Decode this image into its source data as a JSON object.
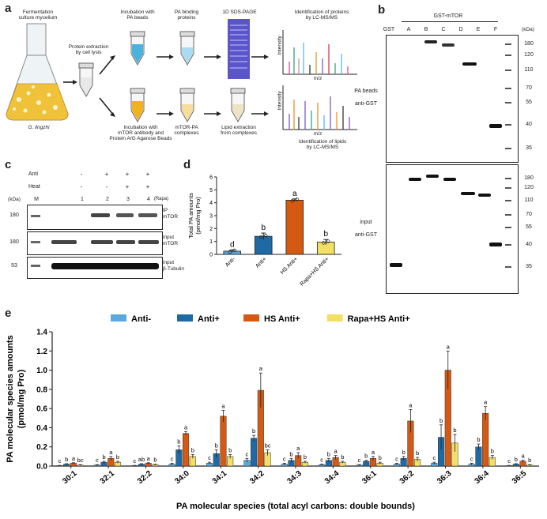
{
  "panel_labels": {
    "a": "a",
    "b": "b",
    "c": "c",
    "d": "d",
    "e": "e"
  },
  "panel_a": {
    "flask_top": "Fermentation\nculture mycelium",
    "flask_species": "G. lingzhi",
    "extraction": "Protein extraction\nby cell lysis",
    "incub_pa": "Incubation with\nPA beads",
    "pa_binding": "PA binding\nproteins",
    "sds_page": "1D SDS-PAGE",
    "ident_proteins": "Identification of proteins\nby LC-MS/MS",
    "incub_mtor": "Incubation with\nmTOR antibody and\nProtein A/G Agarose Beads",
    "mtor_pa": "mTOR-PA\ncomplexes",
    "lipid_extraction": "Lipid extraction\nfrom complexes",
    "ident_lipids": "Identification of lipids\nby LC-MS/MS",
    "intensity": "Intensity",
    "mz": "m/z"
  },
  "panel_b": {
    "header": "GST-mTOR",
    "lanes": [
      "GST",
      "A",
      "B",
      "C",
      "D",
      "E",
      "F"
    ],
    "kda": "(kDa)",
    "markers": [
      "180",
      "120",
      "110",
      "70",
      "55",
      "40",
      "35"
    ],
    "top_label1": "PA beads",
    "top_label2": "anti-GST",
    "bottom_label1": "input",
    "bottom_label2": "anti-GST"
  },
  "panel_c": {
    "row_anti": "Anti",
    "row_heat": "Heat",
    "anti_vals": [
      "-",
      "+",
      "+",
      "+"
    ],
    "heat_vals": [
      "-",
      "-",
      "+",
      "+"
    ],
    "kda": "(kDa)",
    "lanes": [
      "M",
      "1",
      "2",
      "3",
      "4"
    ],
    "rapa": "(Rapa)",
    "blot1_marker": "180",
    "blot1_label1": "IP",
    "blot1_label2": "mTOR",
    "blot2_marker": "180",
    "blot2_label1": "input",
    "blot2_label2": "mTOR",
    "blot3_marker": "53",
    "blot3_label1": "input",
    "blot3_label2": "β-Tubulin"
  },
  "chart_data": [
    {
      "type": "bar",
      "panel": "d",
      "ylabel": "Total PA amounts\n(pmol/mg Pro)",
      "categories": [
        "Anti-",
        "Anti+",
        "HS Anti+",
        "Rapa+HS Anti+"
      ],
      "values": [
        0.25,
        1.4,
        4.2,
        0.95
      ],
      "errors": [
        0.1,
        0.25,
        0.1,
        0.2
      ],
      "letters": [
        "d",
        "b",
        "a",
        "b"
      ],
      "colors": [
        "#5aa9dc",
        "#1f6aa5",
        "#d45a14",
        "#f1e065"
      ],
      "ylim": [
        0,
        6
      ],
      "yticks": [
        0,
        1,
        2,
        3,
        4,
        5,
        6
      ]
    },
    {
      "type": "bar",
      "panel": "e",
      "ylabel": "PA molecular species amounts\n(pmol/mg Pro)",
      "xlabel": "PA molecular species (total acyl carbons: double bounds)",
      "legend": [
        "Anti-",
        "Anti+",
        "HS Anti+",
        "Rapa+HS Anti+"
      ],
      "colors": [
        "#5aa9dc",
        "#1f6aa5",
        "#d45a14",
        "#f1e065"
      ],
      "categories": [
        "30:1",
        "32:1",
        "32:2",
        "34:0",
        "34:1",
        "34:2",
        "34:3",
        "34:4",
        "36:1",
        "36:2",
        "36:3",
        "36:4",
        "36:5"
      ],
      "series": [
        {
          "name": "Anti-",
          "values": [
            0.005,
            0.01,
            0.005,
            0.02,
            0.03,
            0.06,
            0.02,
            0.015,
            0.01,
            0.02,
            0.03,
            0.02,
            0.005
          ]
        },
        {
          "name": "Anti+",
          "values": [
            0.02,
            0.04,
            0.02,
            0.17,
            0.13,
            0.29,
            0.06,
            0.06,
            0.05,
            0.08,
            0.3,
            0.2,
            0.02
          ]
        },
        {
          "name": "HS Anti+",
          "values": [
            0.03,
            0.08,
            0.03,
            0.34,
            0.52,
            0.79,
            0.11,
            0.09,
            0.08,
            0.47,
            1.0,
            0.55,
            0.05
          ]
        },
        {
          "name": "Rapa+HS Anti+",
          "values": [
            0.01,
            0.04,
            0.015,
            0.1,
            0.1,
            0.14,
            0.04,
            0.04,
            0.03,
            0.07,
            0.24,
            0.09,
            0.01
          ]
        }
      ],
      "errors": [
        [
          0.002,
          0.005,
          0.002,
          0.01,
          0.01,
          0.02,
          0.01,
          0.005,
          0.005,
          0.01,
          0.01,
          0.01,
          0.002
        ],
        [
          0.005,
          0.01,
          0.005,
          0.04,
          0.04,
          0.03,
          0.02,
          0.02,
          0.01,
          0.02,
          0.13,
          0.03,
          0.005
        ],
        [
          0.005,
          0.02,
          0.005,
          0.02,
          0.06,
          0.18,
          0.03,
          0.02,
          0.02,
          0.12,
          0.2,
          0.07,
          0.01
        ],
        [
          0.005,
          0.01,
          0.005,
          0.02,
          0.02,
          0.03,
          0.01,
          0.01,
          0.01,
          0.02,
          0.09,
          0.02,
          0.005
        ]
      ],
      "letters": [
        [
          "c",
          "b",
          "a",
          "bc"
        ],
        [
          "c",
          "b",
          "a",
          "b"
        ],
        [
          "c",
          "ab",
          "a",
          "b"
        ],
        [
          "c",
          "b",
          "a",
          "b"
        ],
        [
          "c",
          "b",
          "a",
          "b"
        ],
        [
          "c",
          "b",
          "a",
          "bc"
        ],
        [
          "c",
          "b",
          "a",
          "b"
        ],
        [
          "c",
          "b",
          "a",
          "b"
        ],
        [
          "c",
          "b",
          "a",
          "b"
        ],
        [
          "c",
          "b",
          "a",
          "b"
        ],
        [
          "c",
          "b",
          "a",
          "b"
        ],
        [
          "c",
          "b",
          "a",
          "b"
        ],
        [
          "c",
          "b",
          "a",
          "b"
        ]
      ],
      "ylim": [
        0,
        1.4
      ],
      "yticks": [
        0.0,
        0.2,
        0.4,
        0.6,
        0.8,
        1.0,
        1.2,
        1.4
      ]
    }
  ]
}
